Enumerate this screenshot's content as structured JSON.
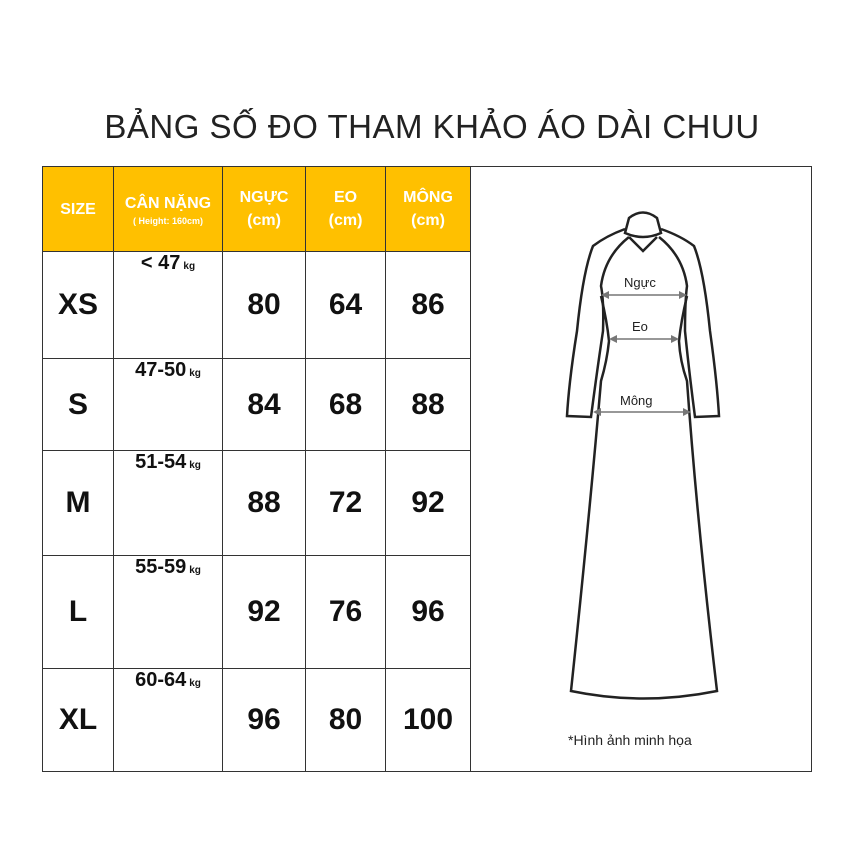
{
  "title": "BẢNG SỐ ĐO THAM KHẢO ÁO DÀI CHUU",
  "header": {
    "size": "SIZE",
    "weight": "CÂN NẶNG",
    "weight_note": "( Height: 160cm)",
    "chest": "NGỰC",
    "waist": "EO",
    "hip": "MÔNG",
    "unit": "(cm)",
    "color": "#FFC000"
  },
  "rows": [
    {
      "size": "XS",
      "weight": "< 47",
      "unit": "kg",
      "chest": "80",
      "waist": "64",
      "hip": "86"
    },
    {
      "size": "S",
      "weight": "47-50",
      "unit": "kg",
      "chest": "84",
      "waist": "68",
      "hip": "88"
    },
    {
      "size": "M",
      "weight": "51-54",
      "unit": "kg",
      "chest": "88",
      "waist": "72",
      "hip": "92"
    },
    {
      "size": "L",
      "weight": "55-59",
      "unit": "kg",
      "chest": "92",
      "waist": "76",
      "hip": "96"
    },
    {
      "size": "XL",
      "weight": "60-64",
      "unit": "kg",
      "chest": "96",
      "waist": "80",
      "hip": "100"
    }
  ],
  "illustration": {
    "chest_label": "Ngực",
    "waist_label": "Eo",
    "hip_label": "Mông",
    "note": "*Hình ảnh minh họa"
  }
}
